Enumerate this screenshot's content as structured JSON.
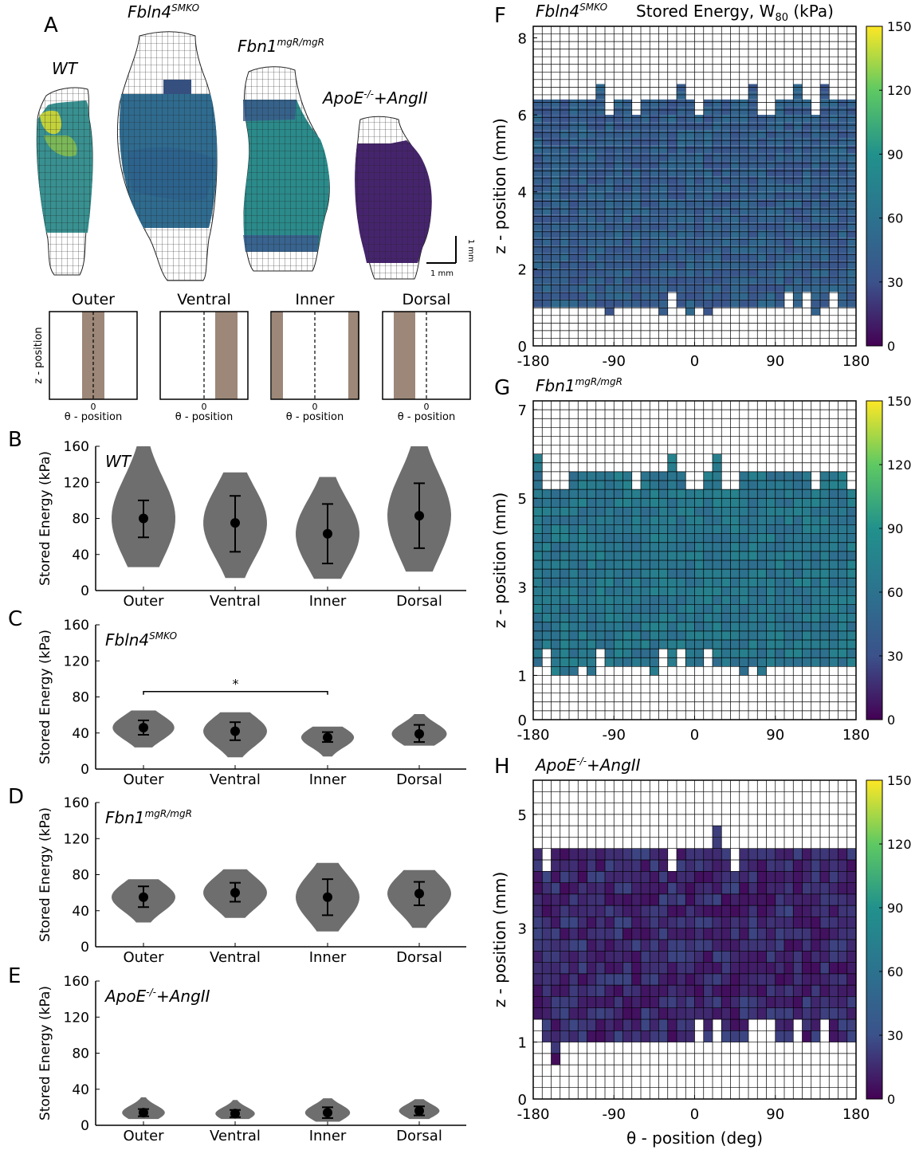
{
  "panel_letters": {
    "A": "A",
    "B": "B",
    "C": "C",
    "D": "D",
    "E": "E",
    "F": "F",
    "G": "G",
    "H": "H"
  },
  "vessels": [
    {
      "name": "WT",
      "sup": "",
      "color_body": "#2d8a8a",
      "hot": "#b7d13a"
    },
    {
      "name": "Fbln4",
      "sup": "SMKO",
      "color_body": "#2e6c8e",
      "hot": "#2a8a8a"
    },
    {
      "name": "Fbn1",
      "sup": "mgR/mgR",
      "color_body": "#2a8c8b",
      "hot": "#3a4f8c"
    },
    {
      "name": "ApoE",
      "sup": "-/-",
      "suffix": "+AngII",
      "color_body": "#46256e",
      "hot": "#3b2a78"
    }
  ],
  "scale_bar": {
    "h": "1 mm",
    "v": "1 mm"
  },
  "schematics": [
    {
      "title": "Outer",
      "xlabel": "θ - position",
      "ylabel": "z - position",
      "zero": "0"
    },
    {
      "title": "Ventral",
      "xlabel": "θ - position",
      "zero": "0"
    },
    {
      "title": "Inner",
      "xlabel": "θ - position",
      "zero": "0"
    },
    {
      "title": "Dorsal",
      "xlabel": "θ - position",
      "zero": "0"
    }
  ],
  "colors": {
    "violin": "#6e6e6e",
    "viridis_low": "#440154",
    "viridis_high": "#fde725"
  },
  "chart_data": [
    {
      "type": "violin",
      "panel": "B",
      "label": "WT",
      "label_sup": "",
      "ylabel": "Stored Energy (kPa)",
      "ylim": [
        0,
        160
      ],
      "yticks": [
        0,
        40,
        80,
        120,
        160
      ],
      "categories": [
        "Outer",
        "Ventral",
        "Inner",
        "Dorsal"
      ],
      "mean": [
        80,
        75,
        63,
        83
      ],
      "sd_low": [
        59,
        43,
        30,
        47
      ],
      "sd_high": [
        100,
        105,
        96,
        119
      ],
      "min": [
        26,
        14,
        13,
        21
      ],
      "max": [
        160,
        131,
        126,
        160
      ]
    },
    {
      "type": "violin",
      "panel": "C",
      "label": "Fbln4",
      "label_sup": "SMKO",
      "ylabel": "Stored Energy (kPa)",
      "ylim": [
        0,
        160
      ],
      "yticks": [
        0,
        40,
        80,
        120,
        160
      ],
      "categories": [
        "Outer",
        "Ventral",
        "Inner",
        "Dorsal"
      ],
      "mean": [
        46,
        42,
        35,
        39
      ],
      "sd_low": [
        38,
        32,
        30,
        30
      ],
      "sd_high": [
        54,
        52,
        41,
        49
      ],
      "min": [
        24,
        13,
        14,
        26
      ],
      "max": [
        65,
        63,
        47,
        61
      ],
      "significance": {
        "from": "Outer",
        "to": "Inner",
        "y": 86,
        "symbol": "*"
      }
    },
    {
      "type": "violin",
      "panel": "D",
      "label": "Fbn1",
      "label_sup": "mgR/mgR",
      "ylabel": "Stored Energy (kPa)",
      "ylim": [
        0,
        160
      ],
      "yticks": [
        0,
        40,
        80,
        120,
        160
      ],
      "categories": [
        "Outer",
        "Ventral",
        "Inner",
        "Dorsal"
      ],
      "mean": [
        55,
        60,
        55,
        59
      ],
      "sd_low": [
        44,
        50,
        35,
        46
      ],
      "sd_high": [
        67,
        71,
        75,
        72
      ],
      "min": [
        27,
        32,
        17,
        21
      ],
      "max": [
        75,
        86,
        93,
        85
      ]
    },
    {
      "type": "violin",
      "panel": "E",
      "label": "ApoE",
      "label_sup": "-/-",
      "label_suffix": "+AngII",
      "ylabel": "Stored Energy (kPa)",
      "ylim": [
        0,
        160
      ],
      "yticks": [
        0,
        40,
        80,
        120,
        160
      ],
      "categories": [
        "Outer",
        "Ventral",
        "Inner",
        "Dorsal"
      ],
      "mean": [
        14,
        13,
        14,
        16
      ],
      "sd_low": [
        10,
        9,
        8,
        11
      ],
      "sd_high": [
        18,
        17,
        20,
        21
      ],
      "min": [
        7,
        7,
        4,
        7
      ],
      "max": [
        31,
        28,
        30,
        29
      ]
    },
    {
      "type": "heatmap",
      "panel": "F",
      "label": "Fbln4",
      "label_sup": "SMKO",
      "title": "Stored Energy, W",
      "title_sub": "80",
      "title_unit": " (kPa)",
      "ylabel": "z - position (mm)",
      "xticks": [
        -180,
        -90,
        0,
        90,
        180
      ],
      "yticks": [
        0,
        2,
        4,
        6,
        8
      ],
      "ylim": [
        0,
        8.3
      ],
      "colorbar": [
        0,
        30,
        60,
        90,
        120,
        150
      ],
      "filled_z": [
        1.0,
        6.6
      ],
      "mean_value": 42
    },
    {
      "type": "heatmap",
      "panel": "G",
      "label": "Fbn1",
      "label_sup": "mgR/mgR",
      "ylabel": "z - position (mm)",
      "xticks": [
        -180,
        -90,
        0,
        90,
        180
      ],
      "yticks": [
        0,
        1,
        3,
        5,
        7
      ],
      "ylim": [
        0,
        7.2
      ],
      "colorbar": [
        0,
        30,
        60,
        90,
        120,
        150
      ],
      "filled_z": [
        1.2,
        5.8
      ],
      "mean_value": 65
    },
    {
      "type": "heatmap",
      "panel": "H",
      "label": "ApoE",
      "label_sup": "-/-",
      "label_suffix": "+AngII",
      "ylabel": "z - position (mm)",
      "xlabel": "θ - position (deg)",
      "xticks": [
        -180,
        -90,
        0,
        90,
        180
      ],
      "yticks": [
        0,
        1,
        3,
        5
      ],
      "ylim": [
        0,
        5.6
      ],
      "colorbar": [
        0,
        30,
        60,
        90,
        120,
        150
      ],
      "filled_z": [
        0.9,
        4.6
      ],
      "mean_value": 15
    }
  ]
}
